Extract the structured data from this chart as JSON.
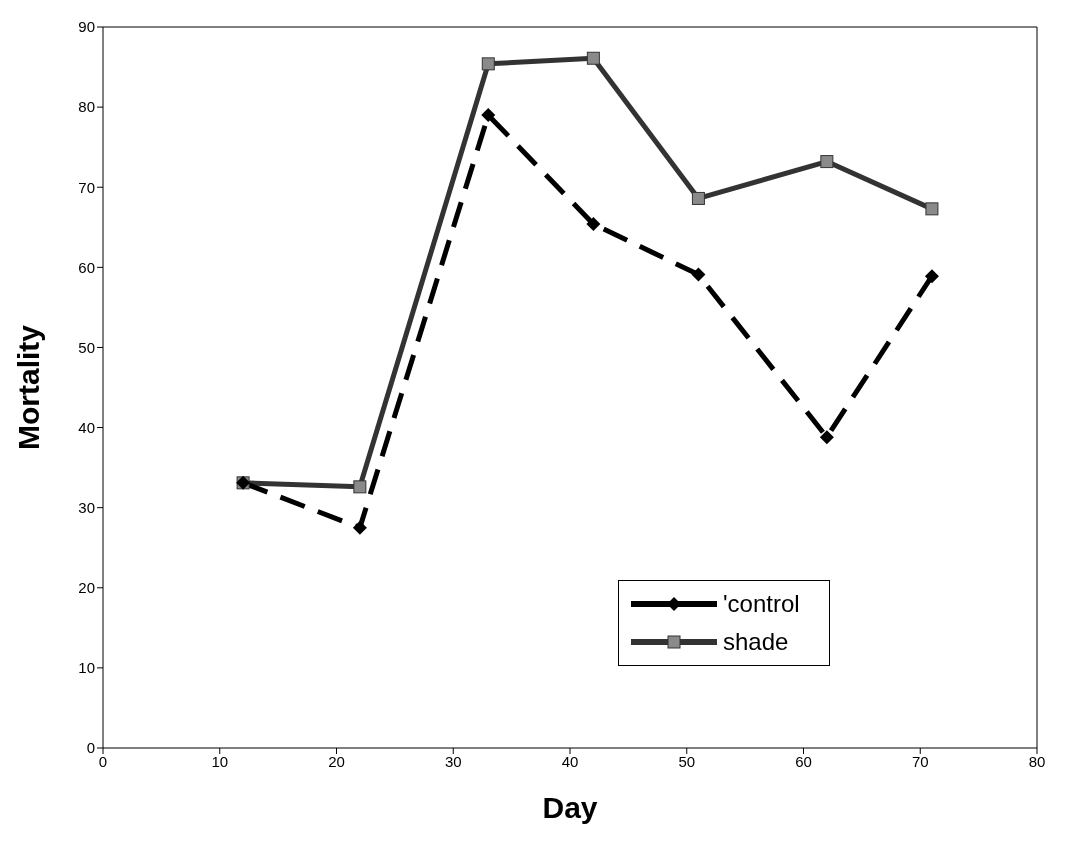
{
  "chart_data": {
    "type": "line",
    "xlabel": "Day",
    "ylabel": "Mortality",
    "xlim": [
      0,
      80
    ],
    "xticks": [
      0,
      10,
      20,
      30,
      40,
      50,
      60,
      70,
      80
    ],
    "ylim": [
      0,
      90
    ],
    "yticks": [
      0,
      10,
      20,
      30,
      40,
      50,
      60,
      70,
      80,
      90
    ],
    "grid": false,
    "legend": "bottom right",
    "series": [
      {
        "name": "'control",
        "color": "#000000",
        "marker": "diamond",
        "line_style": "dashed",
        "x": [
          12,
          22,
          33,
          42,
          51,
          62,
          71
        ],
        "values": [
          33.1,
          27.5,
          79.0,
          65.4,
          59.1,
          38.8,
          58.9
        ]
      },
      {
        "name": "shade",
        "color": "#333333",
        "marker": "square",
        "line_style": "solid",
        "x": [
          12,
          22,
          33,
          42,
          51,
          62,
          71
        ],
        "values": [
          33.1,
          32.6,
          85.4,
          86.1,
          68.6,
          73.2,
          67.3
        ]
      }
    ]
  }
}
